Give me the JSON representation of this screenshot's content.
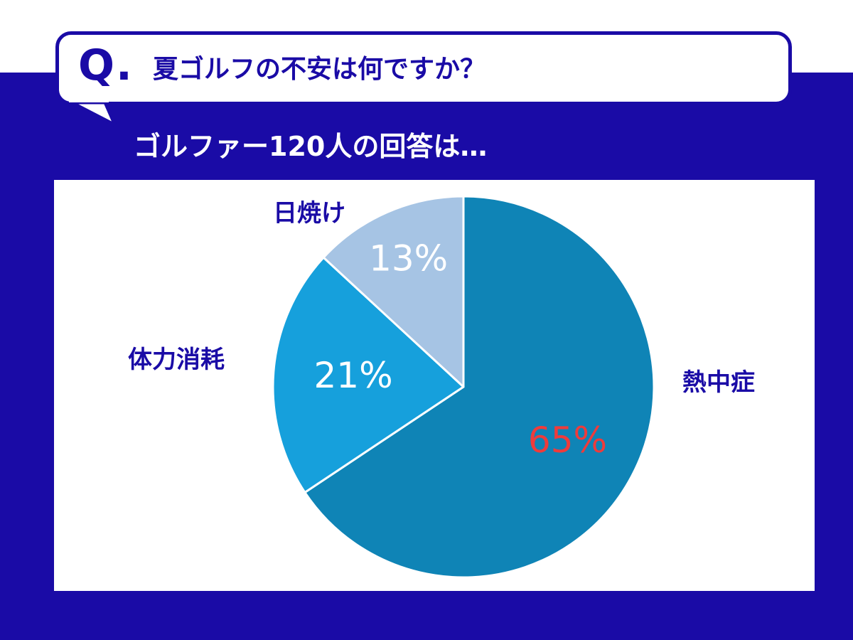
{
  "header": {
    "q_mark": "Q.",
    "question": "夏ゴルフの不安は何ですか？",
    "answer_intro": "ゴルファー120人の回答は…"
  },
  "colors": {
    "navy": "#1a0ba6",
    "heatstroke": "#0f84b6",
    "fatigue": "#16a0dc",
    "sunburn": "#a6c4e4",
    "highlight_pct": "#ef3b3b",
    "pct_default": "#ffffff"
  },
  "chart_data": {
    "type": "pie",
    "title": "",
    "slices": [
      {
        "label": "熱中症",
        "value": 65,
        "value_label": "65%",
        "color": "#0f84b6",
        "highlight": true
      },
      {
        "label": "体力消耗",
        "value": 21,
        "value_label": "21%",
        "color": "#16a0dc",
        "highlight": false
      },
      {
        "label": "日焼け",
        "value": 13,
        "value_label": "13%",
        "color": "#a6c4e4",
        "highlight": false
      }
    ],
    "start": "12 o'clock",
    "direction": "clockwise"
  }
}
